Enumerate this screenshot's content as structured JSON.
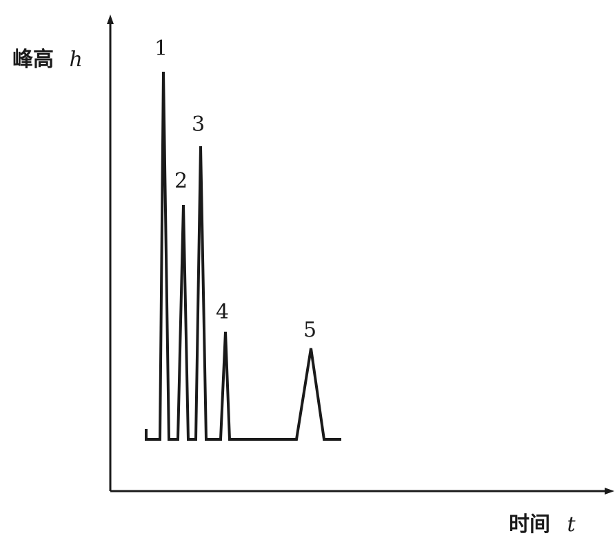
{
  "diagram": {
    "y_axis_label": "峰高",
    "y_axis_symbol": "h",
    "x_axis_label": "时间",
    "x_axis_symbol": "t",
    "peaks": [
      {
        "label": "1"
      },
      {
        "label": "2"
      },
      {
        "label": "3"
      },
      {
        "label": "4"
      },
      {
        "label": "5"
      }
    ],
    "colors": {
      "ink": "#1a1a1a",
      "background": "#ffffff"
    }
  }
}
